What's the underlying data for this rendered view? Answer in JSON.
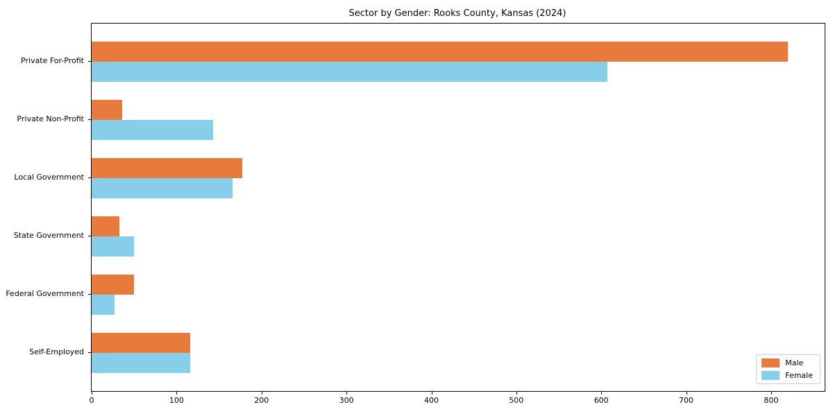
{
  "chart_data": {
    "type": "bar",
    "orientation": "horizontal",
    "title": "Sector by Gender: Rooks County, Kansas (2024)",
    "xlabel": "",
    "ylabel": "",
    "categories": [
      "Private For-Profit",
      "Private Non-Profit",
      "Local Government",
      "State Government",
      "Federal Government",
      "Self-Employed"
    ],
    "series": [
      {
        "name": "Male",
        "color": "#E87A3D",
        "values": [
          820,
          36,
          177,
          33,
          50,
          116
        ]
      },
      {
        "name": "Female",
        "color": "#87CEEB",
        "values": [
          607,
          143,
          166,
          50,
          27,
          116
        ]
      }
    ],
    "xlim": [
      0,
      863
    ],
    "xticks": [
      0,
      100,
      200,
      300,
      400,
      500,
      600,
      700,
      800
    ],
    "legend_position": "lower right",
    "grid": false,
    "background": "#ffffff",
    "spine_color": "#000000"
  }
}
